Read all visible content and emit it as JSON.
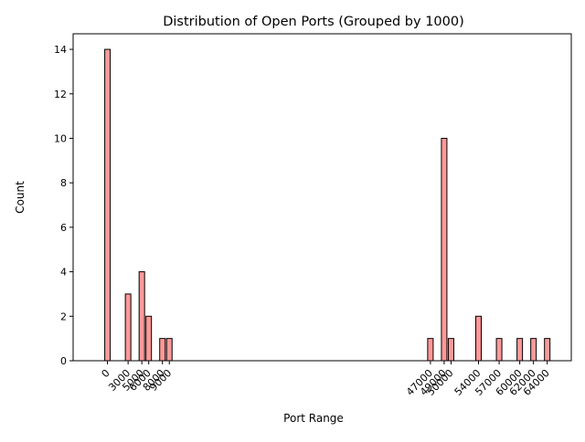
{
  "chart_data": {
    "type": "bar",
    "title": "Distribution of Open Ports (Grouped by 1000)",
    "xlabel": "Port Range",
    "ylabel": "Count",
    "x": [
      0,
      3000,
      5000,
      6000,
      8000,
      9000,
      47000,
      49000,
      50000,
      54000,
      57000,
      60000,
      62000,
      64000
    ],
    "values": [
      14,
      3,
      4,
      2,
      1,
      1,
      1,
      10,
      1,
      2,
      1,
      1,
      1,
      1
    ],
    "xtick_labels": [
      "0",
      "3000",
      "5000",
      "6000",
      "8000",
      "9000",
      "47000",
      "49000",
      "50000",
      "54000",
      "57000",
      "60000",
      "62000",
      "64000"
    ],
    "bar_width": 800,
    "xlim": [
      -5000,
      67500
    ],
    "ylim": [
      0,
      14.7
    ],
    "yticks": [
      0,
      2,
      4,
      6,
      8,
      10,
      12,
      14
    ],
    "ytick_labels": [
      "0",
      "2",
      "4",
      "6",
      "8",
      "10",
      "12",
      "14"
    ],
    "grid": false,
    "legend": false,
    "colors": {
      "bar_fill": "#ff9999",
      "bar_edge": "#000000",
      "axis": "#000000",
      "text": "#000000"
    }
  }
}
